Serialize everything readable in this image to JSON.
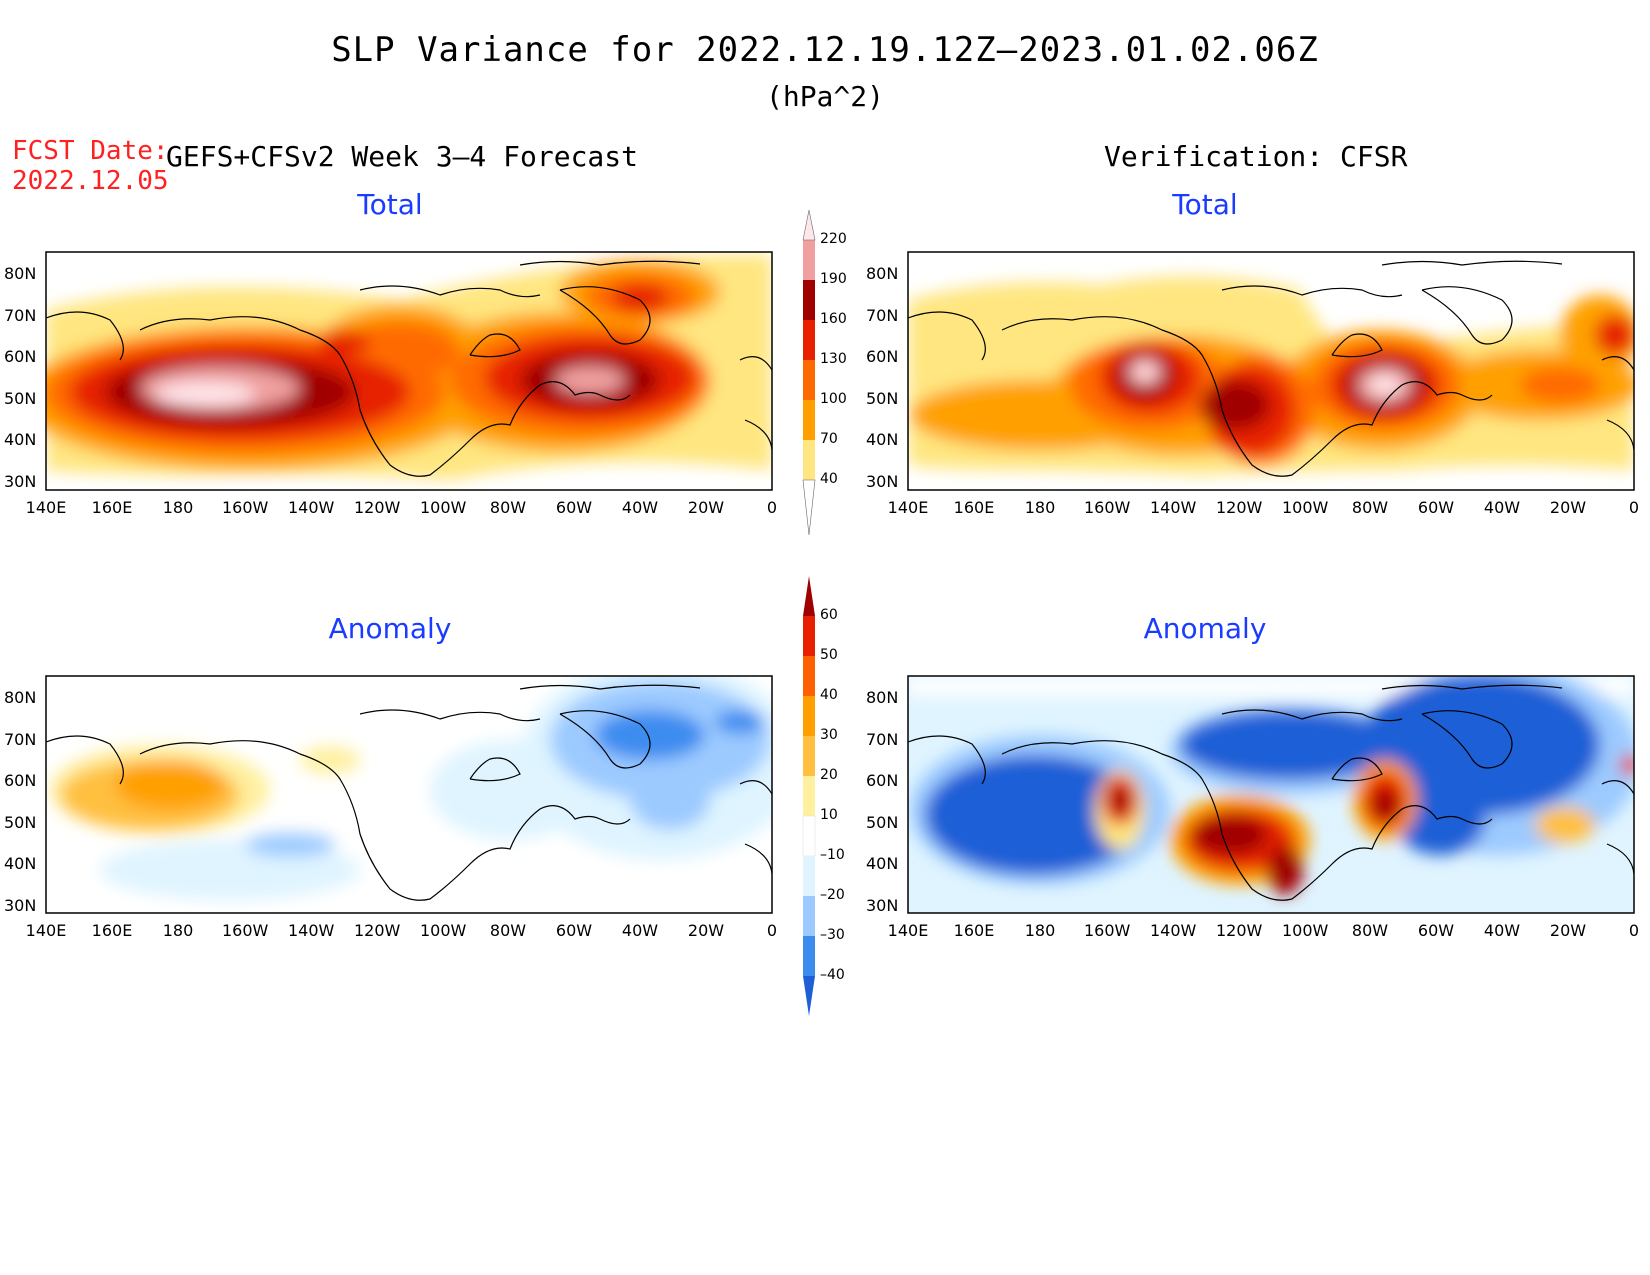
{
  "title": "SLP Variance for 2022.12.19.12Z–2023.01.02.06Z",
  "units": "(hPa^2)",
  "fcst_date_label": "FCST Date:",
  "fcst_date": "2022.12.05",
  "forecast_title": "GEFS+CFSv2 Week 3–4 Forecast",
  "verification_title": "Verification: CFSR",
  "panels": {
    "forecast_total": {
      "subtitle": "Total"
    },
    "verification_total": {
      "subtitle": "Total"
    },
    "forecast_anomaly": {
      "subtitle": "Anomaly"
    },
    "verification_anomaly": {
      "subtitle": "Anomaly"
    }
  },
  "axes": {
    "lon_ticks": [
      "140E",
      "160E",
      "180",
      "160W",
      "140W",
      "120W",
      "100W",
      "80W",
      "60W",
      "40W",
      "20W",
      "0"
    ],
    "lat_ticks": [
      "80N",
      "70N",
      "60N",
      "50N",
      "40N",
      "30N"
    ]
  },
  "total_colorbar": {
    "levels": [
      "40",
      "70",
      "100",
      "130",
      "160",
      "190",
      "220"
    ],
    "colors": [
      "#ffe680",
      "#ffa000",
      "#ff6a00",
      "#e62000",
      "#a00000",
      "#f0a0a0",
      "#ffe6ea"
    ]
  },
  "anomaly_colorbar": {
    "levels": [
      "60",
      "50",
      "40",
      "30",
      "20",
      "10",
      "–10",
      "–20",
      "–30",
      "–40"
    ],
    "colors_top_down": [
      "#a00000",
      "#e62000",
      "#ff6000",
      "#ffa000",
      "#ffc040",
      "#fff0a0",
      "#ffffff",
      "#dff4ff",
      "#9ccaff",
      "#3c8cf0",
      "#1e5fd6"
    ]
  },
  "colors": {
    "title_blue": "#1a3cff",
    "fcst_red": "#ff2020"
  }
}
